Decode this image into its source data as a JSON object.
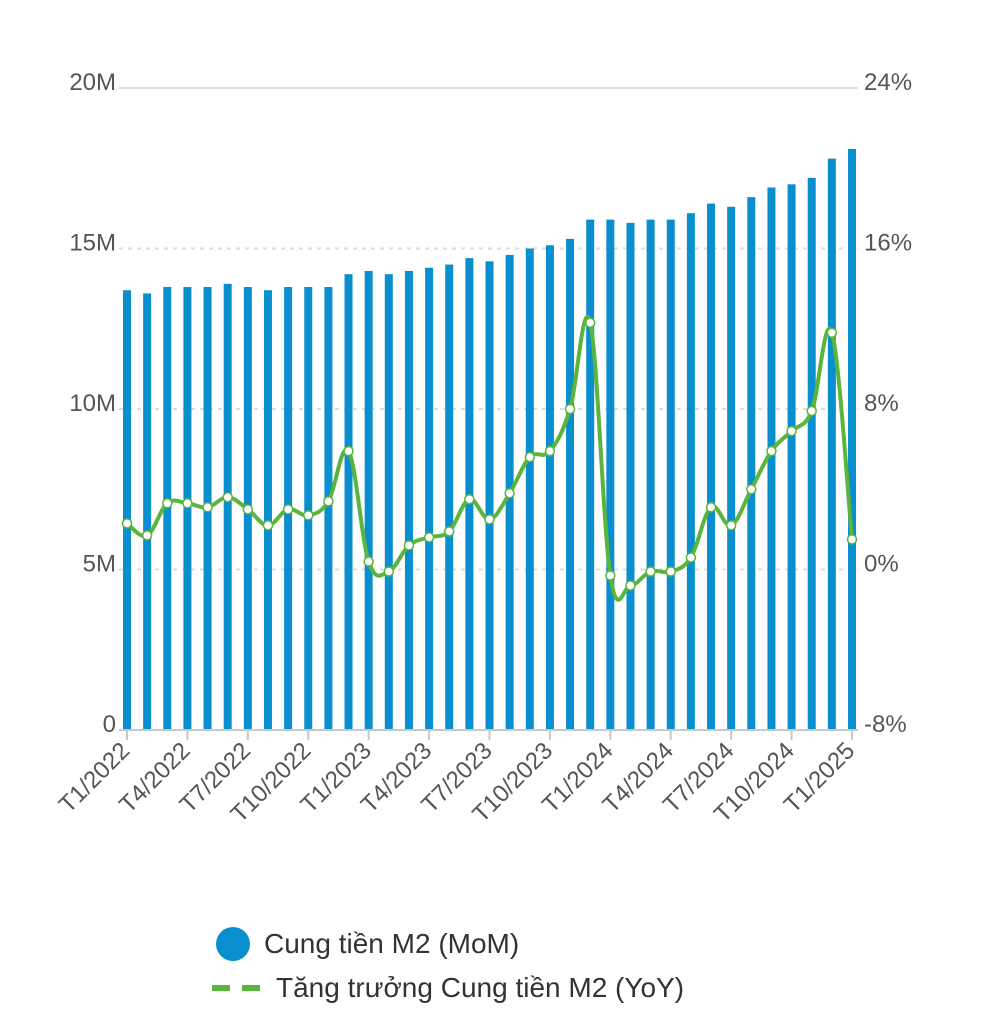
{
  "colors": {
    "bar": "#0a8fce",
    "line": "#5ab53c",
    "grid": "#dcdcdc",
    "axis_text": "#555555"
  },
  "chart_data": {
    "type": "bar",
    "x": [
      "T1/2022",
      "T2/2022",
      "T3/2022",
      "T4/2022",
      "T5/2022",
      "T6/2022",
      "T7/2022",
      "T8/2022",
      "T9/2022",
      "T10/2022",
      "T11/2022",
      "T12/2022",
      "T1/2023",
      "T2/2023",
      "T3/2023",
      "T4/2023",
      "T5/2023",
      "T6/2023",
      "T7/2023",
      "T8/2023",
      "T9/2023",
      "T10/2023",
      "T11/2023",
      "T12/2023",
      "T1/2024",
      "T2/2024",
      "T3/2024",
      "T4/2024",
      "T5/2024",
      "T6/2024",
      "T7/2024",
      "T8/2024",
      "T9/2024",
      "T10/2024",
      "T11/2024",
      "T12/2024",
      "T1/2025"
    ],
    "x_tick_labels": [
      "T1/2022",
      "T4/2022",
      "T7/2022",
      "T10/2022",
      "T1/2023",
      "T4/2023",
      "T7/2023",
      "T10/2023",
      "T1/2024",
      "T4/2024",
      "T7/2024",
      "T10/2024",
      "T1/2025"
    ],
    "series": [
      {
        "name": "Cung tiền M2 (MoM)",
        "type": "bar",
        "axis": "left",
        "values": [
          13.7,
          13.6,
          13.8,
          13.8,
          13.8,
          13.9,
          13.8,
          13.7,
          13.8,
          13.8,
          13.8,
          14.2,
          14.3,
          14.2,
          14.3,
          14.4,
          14.5,
          14.7,
          14.6,
          14.8,
          15.0,
          15.1,
          15.3,
          15.9,
          15.9,
          15.8,
          15.9,
          15.9,
          16.1,
          16.4,
          16.3,
          16.6,
          16.9,
          17.0,
          17.2,
          17.8,
          18.1
        ]
      },
      {
        "name": "Tăng trưởng Cung tiền M2 (YoY)",
        "type": "line",
        "axis": "right",
        "values": [
          2.3,
          1.7,
          3.3,
          3.3,
          3.1,
          3.6,
          3.0,
          2.2,
          3.0,
          2.7,
          3.4,
          5.9,
          0.4,
          -0.1,
          1.2,
          1.6,
          1.9,
          3.5,
          2.5,
          3.8,
          5.6,
          5.9,
          8.0,
          12.3,
          -0.3,
          -0.8,
          -0.1,
          -0.1,
          0.6,
          3.1,
          2.2,
          4.0,
          5.9,
          6.9,
          7.9,
          11.8,
          1.5
        ]
      }
    ],
    "y_left": {
      "ticks": [
        "0",
        "5M",
        "10M",
        "15M",
        "20M"
      ],
      "ylim": [
        0,
        20
      ],
      "unit": "M"
    },
    "y_right": {
      "ticks": [
        "-8%",
        "0%",
        "8%",
        "16%",
        "24%"
      ],
      "ylim": [
        -8,
        24
      ],
      "unit": "%"
    },
    "grid": true,
    "legend_position": "bottom"
  },
  "legend": {
    "bar_label": "Cung tiền M2 (MoM)",
    "line_label": "Tăng trưởng Cung tiền M2 (YoY)"
  }
}
